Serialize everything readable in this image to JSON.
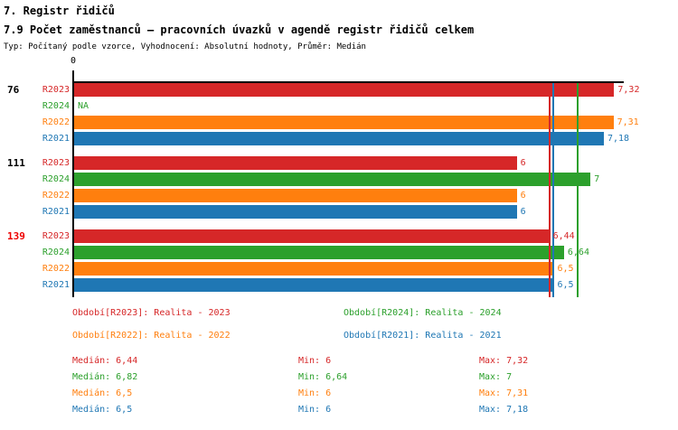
{
  "header": {
    "title": "7. Registr řidičů",
    "subtitle": "7.9 Počet zaměstnanců – pracovních úvazků v agendě registr řidičů celkem",
    "meta": "Typ: Počítaný podle vzorce, Vyhodnocení: Absolutní hodnoty, Průměr: Medián"
  },
  "colors": {
    "R2023": "#d62728",
    "R2024": "#2ca02c",
    "R2022": "#ff7f0e",
    "R2021": "#1f77b4",
    "highlight": "#ee0000",
    "axis": "#000000"
  },
  "chart_data": {
    "type": "bar",
    "orientation": "horizontal",
    "title": "7.9 Počet zaměstnanců – pracovních úvazků v agendě registr řidičů celkem",
    "xlabel": "",
    "ylabel": "",
    "xlim": [
      0,
      7.45
    ],
    "origin_label": "0",
    "grid": false,
    "series_order": [
      "R2023",
      "R2024",
      "R2022",
      "R2021"
    ],
    "groups": [
      {
        "label": "76",
        "highlighted": false,
        "bars": [
          {
            "series": "R2023",
            "value": 7.32,
            "display": "7,32"
          },
          {
            "series": "R2024",
            "value": null,
            "display": "NA"
          },
          {
            "series": "R2022",
            "value": 7.31,
            "display": "7,31"
          },
          {
            "series": "R2021",
            "value": 7.18,
            "display": "7,18"
          }
        ]
      },
      {
        "label": "111",
        "highlighted": false,
        "bars": [
          {
            "series": "R2023",
            "value": 6,
            "display": "6"
          },
          {
            "series": "R2024",
            "value": 7,
            "display": "7"
          },
          {
            "series": "R2022",
            "value": 6,
            "display": "6"
          },
          {
            "series": "R2021",
            "value": 6,
            "display": "6"
          }
        ]
      },
      {
        "label": "139",
        "highlighted": true,
        "bars": [
          {
            "series": "R2023",
            "value": 6.44,
            "display": "6,44"
          },
          {
            "series": "R2024",
            "value": 6.64,
            "display": "6,64"
          },
          {
            "series": "R2022",
            "value": 6.5,
            "display": "6,5"
          },
          {
            "series": "R2021",
            "value": 6.5,
            "display": "6,5"
          }
        ]
      }
    ],
    "median_lines": [
      {
        "series": "R2023",
        "value": 6.44
      },
      {
        "series": "R2022",
        "value": 6.5
      },
      {
        "series": "R2021",
        "value": 6.5
      },
      {
        "series": "R2024",
        "value": 6.82
      }
    ]
  },
  "legend": [
    {
      "series": "R2023",
      "label": "Období[R2023]: Realita - 2023"
    },
    {
      "series": "R2024",
      "label": "Období[R2024]: Realita - 2024"
    },
    {
      "series": "R2022",
      "label": "Období[R2022]: Realita - 2022"
    },
    {
      "series": "R2021",
      "label": "Období[R2021]: Realita - 2021"
    }
  ],
  "stats": [
    {
      "series": "R2023",
      "median": "Medián: 6,44",
      "min": "Min: 6",
      "max": "Max: 7,32"
    },
    {
      "series": "R2024",
      "median": "Medián: 6,82",
      "min": "Min: 6,64",
      "max": "Max: 7"
    },
    {
      "series": "R2022",
      "median": "Medián: 6,5",
      "min": "Min: 6",
      "max": "Max: 7,31"
    },
    {
      "series": "R2021",
      "median": "Medián: 6,5",
      "min": "Min: 6",
      "max": "Max: 7,18"
    }
  ]
}
